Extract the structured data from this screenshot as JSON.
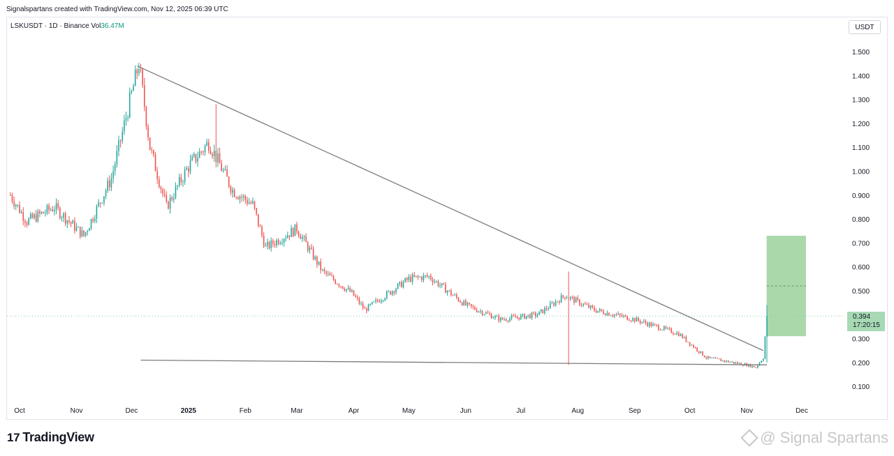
{
  "header": {
    "caption": "Signalspartans created with TradingView.com, Nov 12, 2025 06:39 UTC"
  },
  "symbol_bar": {
    "symbol": "LSKUSDT · 1D · Binance",
    "vol_label": "Vol",
    "vol_value": "36.47M"
  },
  "currency_button": "USDT",
  "price_label": {
    "price": "0.394",
    "countdown": "17:20:15"
  },
  "footer": {
    "logo_text": "TradingView",
    "logo_mark": "17",
    "watermark": "@ Signal Spartans"
  },
  "colors": {
    "up": "#26a69a",
    "down": "#ef5350",
    "trendline": "#7b7b7b",
    "target_box": "#a5d6a7"
  },
  "chart_data": {
    "type": "candlestick",
    "title": "LSKUSDT · 1D · Binance",
    "x_ticks": [
      "Oct",
      "Nov",
      "Dec",
      "2025",
      "Feb",
      "Mar",
      "Apr",
      "May",
      "Jun",
      "Jul",
      "Aug",
      "Sep",
      "Oct",
      "Nov",
      "Dec"
    ],
    "x_tick_dates": [
      "2024-10-01",
      "2024-11-01",
      "2024-12-01",
      "2025-01-01",
      "2025-02-01",
      "2025-03-01",
      "2025-04-01",
      "2025-05-01",
      "2025-06-01",
      "2025-07-01",
      "2025-08-01",
      "2025-09-01",
      "2025-10-01",
      "2025-11-01",
      "2025-12-01"
    ],
    "y_ticks": [
      "1.500",
      "1.400",
      "1.300",
      "1.200",
      "1.100",
      "1.000",
      "0.900",
      "0.800",
      "0.700",
      "0.600",
      "0.500",
      "0.400",
      "0.300",
      "0.200",
      "0.100"
    ],
    "ylim": [
      0.1,
      1.5
    ],
    "last_price": 0.394,
    "price_path": [
      {
        "date": "2024-09-26",
        "close": 0.9
      },
      {
        "date": "2024-10-05",
        "close": 0.79
      },
      {
        "date": "2024-10-20",
        "close": 0.85
      },
      {
        "date": "2024-11-05",
        "close": 0.73
      },
      {
        "date": "2024-11-20",
        "close": 0.97
      },
      {
        "date": "2024-12-05",
        "close": 1.45
      },
      {
        "date": "2024-12-11",
        "close": 1.1
      },
      {
        "date": "2024-12-20",
        "close": 0.85
      },
      {
        "date": "2025-01-01",
        "close": 1.02
      },
      {
        "date": "2025-01-12",
        "close": 1.12
      },
      {
        "date": "2025-01-25",
        "close": 0.92
      },
      {
        "date": "2025-02-05",
        "close": 0.86
      },
      {
        "date": "2025-02-12",
        "close": 0.68
      },
      {
        "date": "2025-03-01",
        "close": 0.76
      },
      {
        "date": "2025-03-15",
        "close": 0.58
      },
      {
        "date": "2025-03-31",
        "close": 0.49
      },
      {
        "date": "2025-04-07",
        "close": 0.42
      },
      {
        "date": "2025-05-01",
        "close": 0.55
      },
      {
        "date": "2025-05-12",
        "close": 0.56
      },
      {
        "date": "2025-06-01",
        "close": 0.44
      },
      {
        "date": "2025-06-20",
        "close": 0.38
      },
      {
        "date": "2025-07-10",
        "close": 0.4
      },
      {
        "date": "2025-07-25",
        "close": 0.48
      },
      {
        "date": "2025-08-10",
        "close": 0.42
      },
      {
        "date": "2025-09-01",
        "close": 0.38
      },
      {
        "date": "2025-09-25",
        "close": 0.32
      },
      {
        "date": "2025-10-10",
        "close": 0.22
      },
      {
        "date": "2025-11-01",
        "close": 0.19
      },
      {
        "date": "2025-11-06",
        "close": 0.18
      },
      {
        "date": "2025-11-10",
        "close": 0.22
      },
      {
        "date": "2025-11-12",
        "close": 0.394
      }
    ],
    "spikes": [
      {
        "date": "2025-01-16",
        "high": 1.28
      },
      {
        "date": "2025-07-27",
        "high": 0.58,
        "low": 0.19
      }
    ],
    "trendlines": [
      {
        "name": "upper",
        "from": {
          "date": "2024-12-04",
          "price": 1.44
        },
        "to": {
          "date": "2025-11-10",
          "price": 0.25
        }
      },
      {
        "name": "lower",
        "from": {
          "date": "2024-12-06",
          "price": 0.21
        },
        "to": {
          "date": "2025-11-12",
          "price": 0.19
        }
      }
    ],
    "target_zone": {
      "from_date": "2025-11-13",
      "to_date": "2025-12-01",
      "low": 0.31,
      "high": 0.73,
      "mid_dashed": 0.52
    }
  }
}
